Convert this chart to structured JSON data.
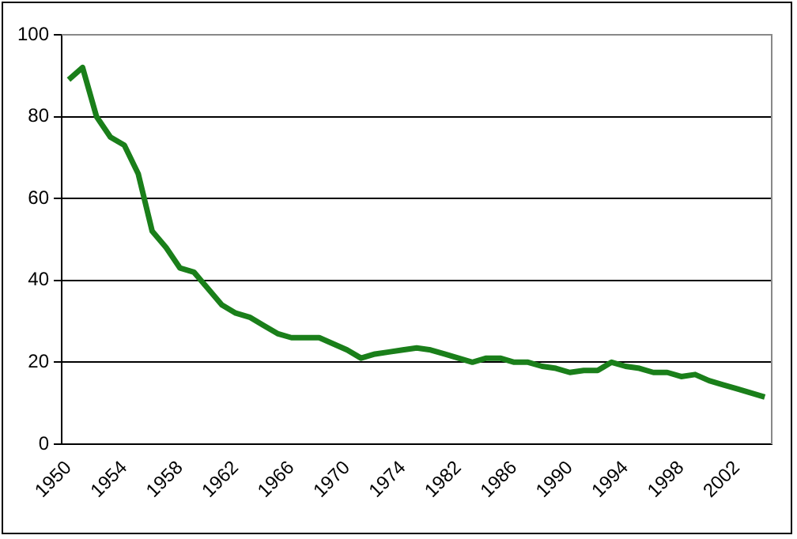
{
  "chart_data": {
    "type": "line",
    "categories": [
      "1950",
      null,
      null,
      null,
      "1954",
      null,
      null,
      null,
      "1958",
      null,
      null,
      null,
      "1962",
      null,
      null,
      null,
      "1966",
      null,
      null,
      null,
      "1970",
      null,
      null,
      null,
      "1974",
      null,
      null,
      null,
      "1982",
      null,
      null,
      null,
      "1986",
      null,
      null,
      null,
      "1990",
      null,
      null,
      null,
      "1994",
      null,
      null,
      null,
      "1998",
      null,
      null,
      null,
      "2002",
      null,
      null
    ],
    "series": [
      {
        "color": "#1a7f1a",
        "values": [
          89,
          92,
          80,
          75,
          73,
          66,
          52,
          48,
          43,
          42,
          38,
          34,
          32,
          31,
          29,
          27,
          26,
          26,
          26,
          24.5,
          23,
          21,
          22,
          22.5,
          23,
          23.5,
          23,
          22,
          21,
          20,
          21,
          21,
          20,
          20,
          19,
          18.5,
          17.5,
          18,
          18,
          20,
          19,
          18.5,
          17.5,
          17.5,
          16.5,
          17,
          15.5,
          14.5,
          13.5,
          12.5,
          11.5
        ]
      }
    ],
    "ylim": [
      0,
      100
    ],
    "yticks": [
      0,
      20,
      40,
      60,
      80,
      100
    ],
    "grid": "y",
    "legend": false,
    "marker": "none",
    "line_style": "solid"
  }
}
